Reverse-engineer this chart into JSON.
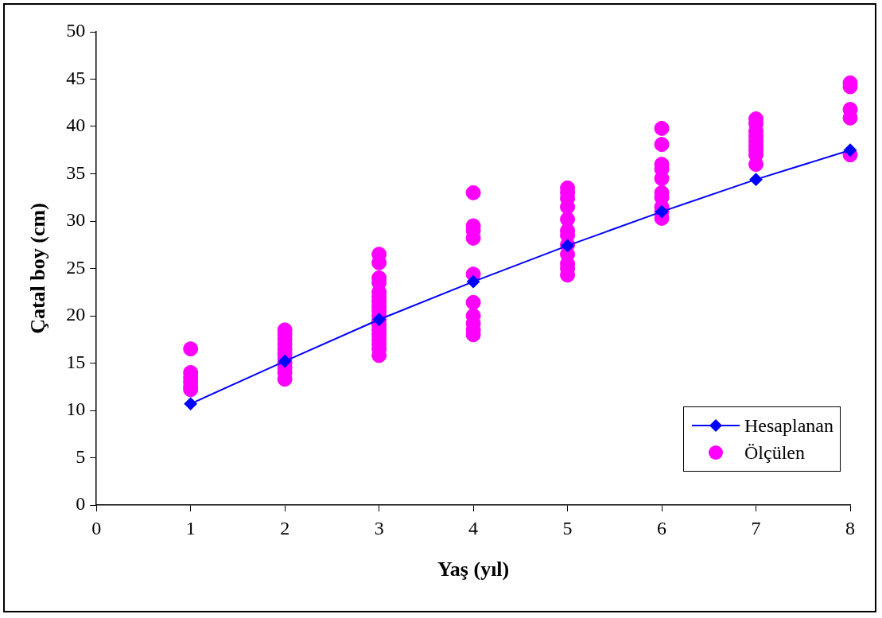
{
  "chart_data": {
    "type": "scatter",
    "xlabel": "Yaş (yıl)",
    "ylabel": "Çatal boy (cm)",
    "xlim": [
      0,
      8
    ],
    "xticks": [
      0,
      1,
      2,
      3,
      4,
      5,
      6,
      7,
      8
    ],
    "ylim": [
      0,
      50
    ],
    "yticks": [
      0,
      5,
      10,
      15,
      20,
      25,
      30,
      35,
      40,
      45,
      50
    ],
    "grid": false,
    "legend": "bottom right",
    "series": [
      {
        "name": "Hesaplanan",
        "type": "line",
        "color": "#0000ff",
        "marker": "diamond",
        "line_style": "solid",
        "x": [
          1,
          2,
          3,
          4,
          5,
          6,
          7,
          8
        ],
        "values": [
          10.7,
          15.2,
          19.6,
          23.6,
          27.4,
          31.0,
          34.4,
          37.5
        ]
      },
      {
        "name": "Ölçülen",
        "type": "scatter",
        "color": "#ff00ff",
        "marker": "circle",
        "x": [
          1,
          1,
          1,
          1,
          1,
          1,
          2,
          2,
          2,
          2,
          2,
          2,
          2,
          2,
          2,
          2,
          2,
          3,
          3,
          3,
          3,
          3,
          3,
          3,
          3,
          3,
          3,
          3,
          3,
          3,
          3,
          3,
          3,
          3,
          3,
          4,
          4,
          4,
          4,
          4,
          4,
          4,
          4,
          4,
          4,
          5,
          5,
          5,
          5,
          5,
          5,
          5,
          5,
          5,
          5,
          5,
          5,
          6,
          6,
          6,
          6,
          6,
          6,
          6,
          6,
          6,
          6,
          7,
          7,
          7,
          7,
          7,
          7,
          7,
          7,
          7,
          8,
          8,
          8,
          8,
          8
        ],
        "values": [
          16.5,
          14.0,
          13.5,
          13.0,
          12.5,
          12.2,
          13.3,
          14,
          14.5,
          15,
          15.5,
          16,
          16.5,
          17,
          17.5,
          18,
          18.5,
          26.5,
          25.6,
          24,
          23.5,
          22.5,
          22,
          21.5,
          21,
          20.5,
          20,
          19.5,
          19,
          18.5,
          18,
          17.5,
          17,
          16.5,
          15.8,
          33,
          29.5,
          29,
          28.2,
          24.4,
          21.4,
          20,
          19.2,
          18.5,
          18,
          33.5,
          33,
          32.4,
          31.5,
          30.2,
          29,
          28.5,
          27.5,
          26.5,
          25.5,
          25,
          24.3,
          39.8,
          38.1,
          36,
          35.5,
          34.5,
          33,
          32.5,
          31.5,
          31,
          30.3,
          40.8,
          40.3,
          39.5,
          39,
          38.5,
          38,
          37.5,
          37,
          36,
          44.6,
          44.2,
          41.8,
          40.9,
          37
        ]
      }
    ]
  }
}
